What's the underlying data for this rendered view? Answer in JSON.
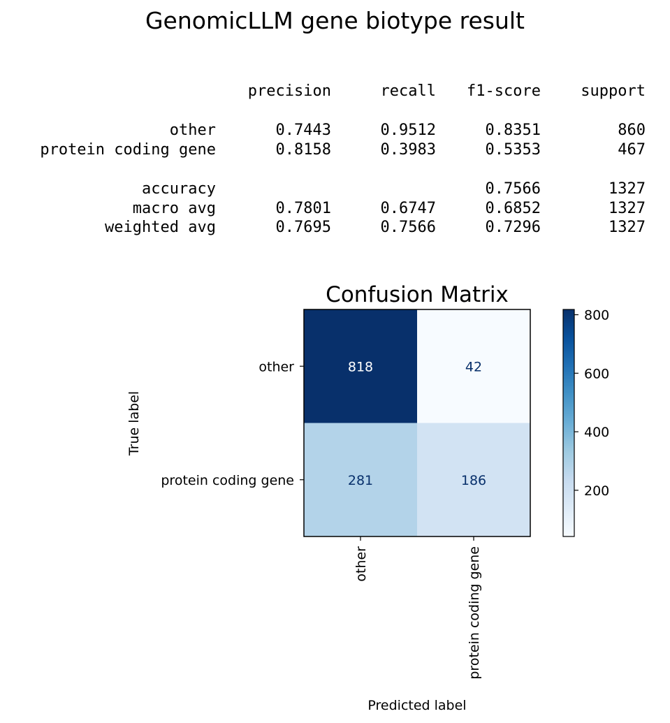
{
  "figure": {
    "title": "GenomicLLM gene biotype result"
  },
  "report": {
    "headers": [
      "precision",
      "recall",
      "f1-score",
      "support"
    ],
    "rows": [
      {
        "label": "other",
        "precision": "0.7443",
        "recall": "0.9512",
        "f1": "0.8351",
        "support": "860"
      },
      {
        "label": "protein coding gene",
        "precision": "0.8158",
        "recall": "0.3983",
        "f1": "0.5353",
        "support": "467"
      },
      {
        "label": "accuracy",
        "precision": "",
        "recall": "",
        "f1": "0.7566",
        "support": "1327"
      },
      {
        "label": "macro avg",
        "precision": "0.7801",
        "recall": "0.6747",
        "f1": "0.6852",
        "support": "1327"
      },
      {
        "label": "weighted avg",
        "precision": "0.7695",
        "recall": "0.7566",
        "f1": "0.7296",
        "support": "1327"
      }
    ]
  },
  "chart_data": {
    "type": "heatmap",
    "title": "Confusion Matrix",
    "xlabel": "Predicted label",
    "ylabel": "True label",
    "x_categories": [
      "other",
      "protein coding gene"
    ],
    "y_categories": [
      "other",
      "protein coding gene"
    ],
    "values": [
      [
        818,
        42
      ],
      [
        281,
        186
      ]
    ],
    "colormap": "Blues",
    "vmin": 42,
    "vmax": 818,
    "colorbar_ticks": [
      200,
      400,
      600,
      800
    ],
    "colors": {
      "low": "#f7fbff",
      "high": "#08306b",
      "text_light": "#ffffff",
      "text_dark": "#08306b"
    }
  }
}
